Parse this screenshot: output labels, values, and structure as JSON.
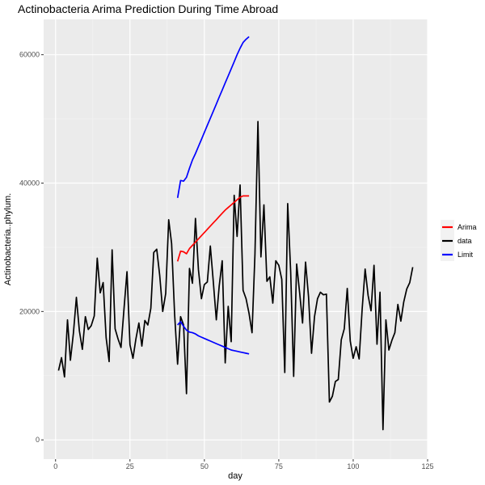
{
  "chart_data": {
    "type": "line",
    "title": "Actinobacteria Arima Prediction During Time Abroad",
    "xlabel": "day",
    "ylabel": "Actinobacteria..phylum.",
    "xlim": [
      -4,
      125
    ],
    "ylim": [
      -3000,
      65500
    ],
    "x_ticks": [
      0,
      25,
      50,
      75,
      100,
      125
    ],
    "y_ticks": [
      0,
      20000,
      40000,
      60000
    ],
    "x_tick_labels": [
      "0",
      "25",
      "50",
      "75",
      "100",
      "125"
    ],
    "y_tick_labels": [
      "0",
      "20000",
      "40000",
      "60000"
    ],
    "grid": true,
    "legend_position": "right",
    "legend": [
      {
        "name": "Arima",
        "color": "#ff0000"
      },
      {
        "name": "data",
        "color": "#000000"
      },
      {
        "name": "Limit",
        "color": "#0000ff"
      }
    ],
    "series": [
      {
        "name": "data",
        "color": "#000000",
        "x": [
          1,
          2,
          3,
          4,
          5,
          6,
          7,
          8,
          9,
          10,
          11,
          12,
          13,
          14,
          15,
          16,
          17,
          18,
          19,
          20,
          21,
          22,
          23,
          24,
          25,
          26,
          27,
          28,
          29,
          30,
          31,
          32,
          33,
          34,
          35,
          36,
          37,
          38,
          39,
          40,
          41,
          42,
          43,
          44,
          45,
          46,
          47,
          48,
          49,
          50,
          51,
          52,
          53,
          54,
          55,
          56,
          57,
          58,
          59,
          60,
          61,
          62,
          63,
          64,
          65,
          66,
          67,
          68,
          69,
          70,
          71,
          72,
          73,
          74,
          75,
          76,
          77,
          78,
          79,
          80,
          81,
          82,
          83,
          84,
          85,
          86,
          87,
          88,
          89,
          90,
          91,
          92,
          93,
          94,
          95,
          96,
          97,
          98,
          99,
          100,
          101,
          102,
          103,
          104,
          105,
          106,
          107,
          108,
          109,
          110,
          111,
          112,
          113,
          114,
          115,
          116,
          117,
          118,
          119,
          120
        ],
        "y": [
          10800,
          12800,
          9800,
          18700,
          12400,
          16600,
          22200,
          17000,
          14100,
          19200,
          17200,
          17800,
          19300,
          28300,
          22900,
          24500,
          15900,
          12200,
          29600,
          17300,
          15700,
          14400,
          20400,
          26200,
          14800,
          12700,
          15700,
          18200,
          14600,
          18600,
          17900,
          20500,
          29200,
          29700,
          25600,
          20000,
          22800,
          34300,
          30600,
          19600,
          11800,
          19200,
          17900,
          7200,
          26700,
          24400,
          34500,
          26500,
          22000,
          24200,
          24600,
          30200,
          24600,
          18700,
          24000,
          27900,
          12000,
          20800,
          15300,
          38100,
          31700,
          39700,
          23300,
          22000,
          19700,
          16700,
          28900,
          49600,
          28500,
          36600,
          24700,
          25400,
          21300,
          27900,
          27200,
          25000,
          10500,
          36800,
          26200,
          9900,
          27400,
          22900,
          18200,
          27700,
          22300,
          13500,
          19200,
          22000,
          23000,
          22600,
          22700,
          5900,
          6800,
          9100,
          9400,
          15600,
          17300,
          23600,
          15400,
          12700,
          14500,
          12600,
          20300,
          26600,
          22500,
          20100,
          27200,
          14900,
          23000,
          1600,
          18700,
          14000,
          15500,
          16700,
          21100,
          18500,
          21500,
          23500,
          24500,
          26900
        ]
      },
      {
        "name": "Arima",
        "color": "#ff0000",
        "x": [
          41,
          42,
          43,
          44,
          45,
          46,
          47,
          48,
          49,
          50,
          51,
          52,
          53,
          54,
          55,
          56,
          57,
          58,
          59,
          60,
          61,
          62,
          63,
          64,
          65
        ],
        "y": [
          27800,
          29400,
          29300,
          29000,
          29800,
          30300,
          30800,
          31300,
          31800,
          32300,
          32800,
          33300,
          33800,
          34300,
          34800,
          35300,
          35800,
          36200,
          36600,
          37000,
          37400,
          37800,
          38000,
          38000,
          38000
        ]
      },
      {
        "name": "Limit",
        "color": "#0000ff",
        "x": [
          41,
          42,
          43,
          44,
          45,
          46,
          47,
          48,
          49,
          50,
          51,
          52,
          53,
          54,
          55,
          56,
          57,
          58,
          59,
          60,
          61,
          62,
          63,
          64,
          65
        ],
        "y": [
          37700,
          40400,
          40300,
          40900,
          42300,
          43600,
          44600,
          45700,
          46800,
          47900,
          49000,
          50100,
          51200,
          52300,
          53400,
          54500,
          55600,
          56700,
          57800,
          58900,
          60000,
          61000,
          61900,
          62400,
          62800
        ]
      },
      {
        "name": "Limit",
        "color": "#0000ff",
        "x": [
          41,
          42,
          43,
          44,
          45,
          46,
          47,
          48,
          49,
          50,
          51,
          52,
          53,
          54,
          55,
          56,
          57,
          58,
          59,
          60,
          61,
          62,
          63,
          64,
          65
        ],
        "y": [
          17900,
          18400,
          17700,
          17100,
          16800,
          16700,
          16500,
          16200,
          16000,
          15800,
          15600,
          15400,
          15200,
          15000,
          14800,
          14600,
          14400,
          14200,
          14000,
          13900,
          13800,
          13700,
          13600,
          13500,
          13400
        ]
      }
    ]
  }
}
